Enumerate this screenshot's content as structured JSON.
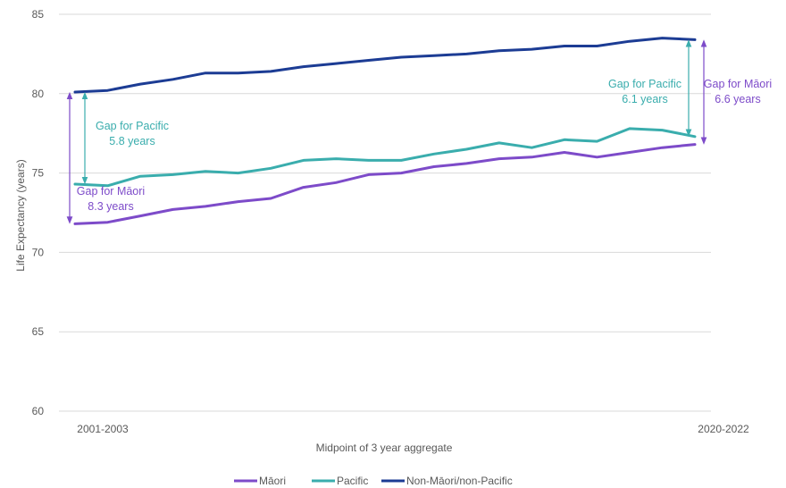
{
  "chart_data": {
    "type": "line",
    "title": "",
    "xlabel": "Midpoint of 3 year aggregate",
    "ylabel": "Life Expectancy (years)",
    "ylim": [
      60,
      85
    ],
    "yticks": [
      60,
      65,
      70,
      75,
      80,
      85
    ],
    "x_tick_labels": [
      "2001-2003",
      "2020-2022"
    ],
    "x": [
      2002,
      2003,
      2004,
      2005,
      2006,
      2007,
      2008,
      2009,
      2010,
      2011,
      2012,
      2013,
      2014,
      2015,
      2016,
      2017,
      2018,
      2019,
      2020,
      2021
    ],
    "grid": "horizontal",
    "legend_position": "bottom",
    "series": [
      {
        "name": "Māori",
        "color": "#7d4bc9",
        "values": [
          71.8,
          71.9,
          72.3,
          72.7,
          72.9,
          73.2,
          73.4,
          74.1,
          74.4,
          74.9,
          75.0,
          75.4,
          75.6,
          75.9,
          76.0,
          76.3,
          76.0,
          76.3,
          76.6,
          76.8
        ]
      },
      {
        "name": "Pacific",
        "color": "#3aadad",
        "values": [
          74.3,
          74.2,
          74.8,
          74.9,
          75.1,
          75.0,
          75.3,
          75.8,
          75.9,
          75.8,
          75.8,
          76.2,
          76.5,
          76.9,
          76.6,
          77.1,
          77.0,
          77.8,
          77.7,
          77.3
        ]
      },
      {
        "name": "Non-Māori/non-Pacific",
        "color": "#1c3c94",
        "values": [
          80.1,
          80.2,
          80.6,
          80.9,
          81.3,
          81.3,
          81.4,
          81.7,
          81.9,
          82.1,
          82.3,
          82.4,
          82.5,
          82.7,
          82.8,
          83.0,
          83.0,
          83.3,
          83.5,
          83.4
        ]
      }
    ],
    "annotations": [
      {
        "lines": [
          "Gap for Pacific",
          "5.8 years"
        ],
        "color": "#3aadad",
        "x": 2002,
        "y_from": 80.1,
        "y_to": 74.3
      },
      {
        "lines": [
          "Gap for Māori",
          "8.3 years"
        ],
        "color": "#7d4bc9",
        "x": 2002,
        "y_from": 80.1,
        "y_to": 71.8
      },
      {
        "lines": [
          "Gap for Pacific",
          "6.1 years"
        ],
        "color": "#3aadad",
        "x": 2021,
        "y_from": 83.4,
        "y_to": 77.3
      },
      {
        "lines": [
          "Gap for Māori",
          "6.6 years"
        ],
        "color": "#7d4bc9",
        "x": 2021,
        "y_from": 83.4,
        "y_to": 76.8
      }
    ]
  }
}
